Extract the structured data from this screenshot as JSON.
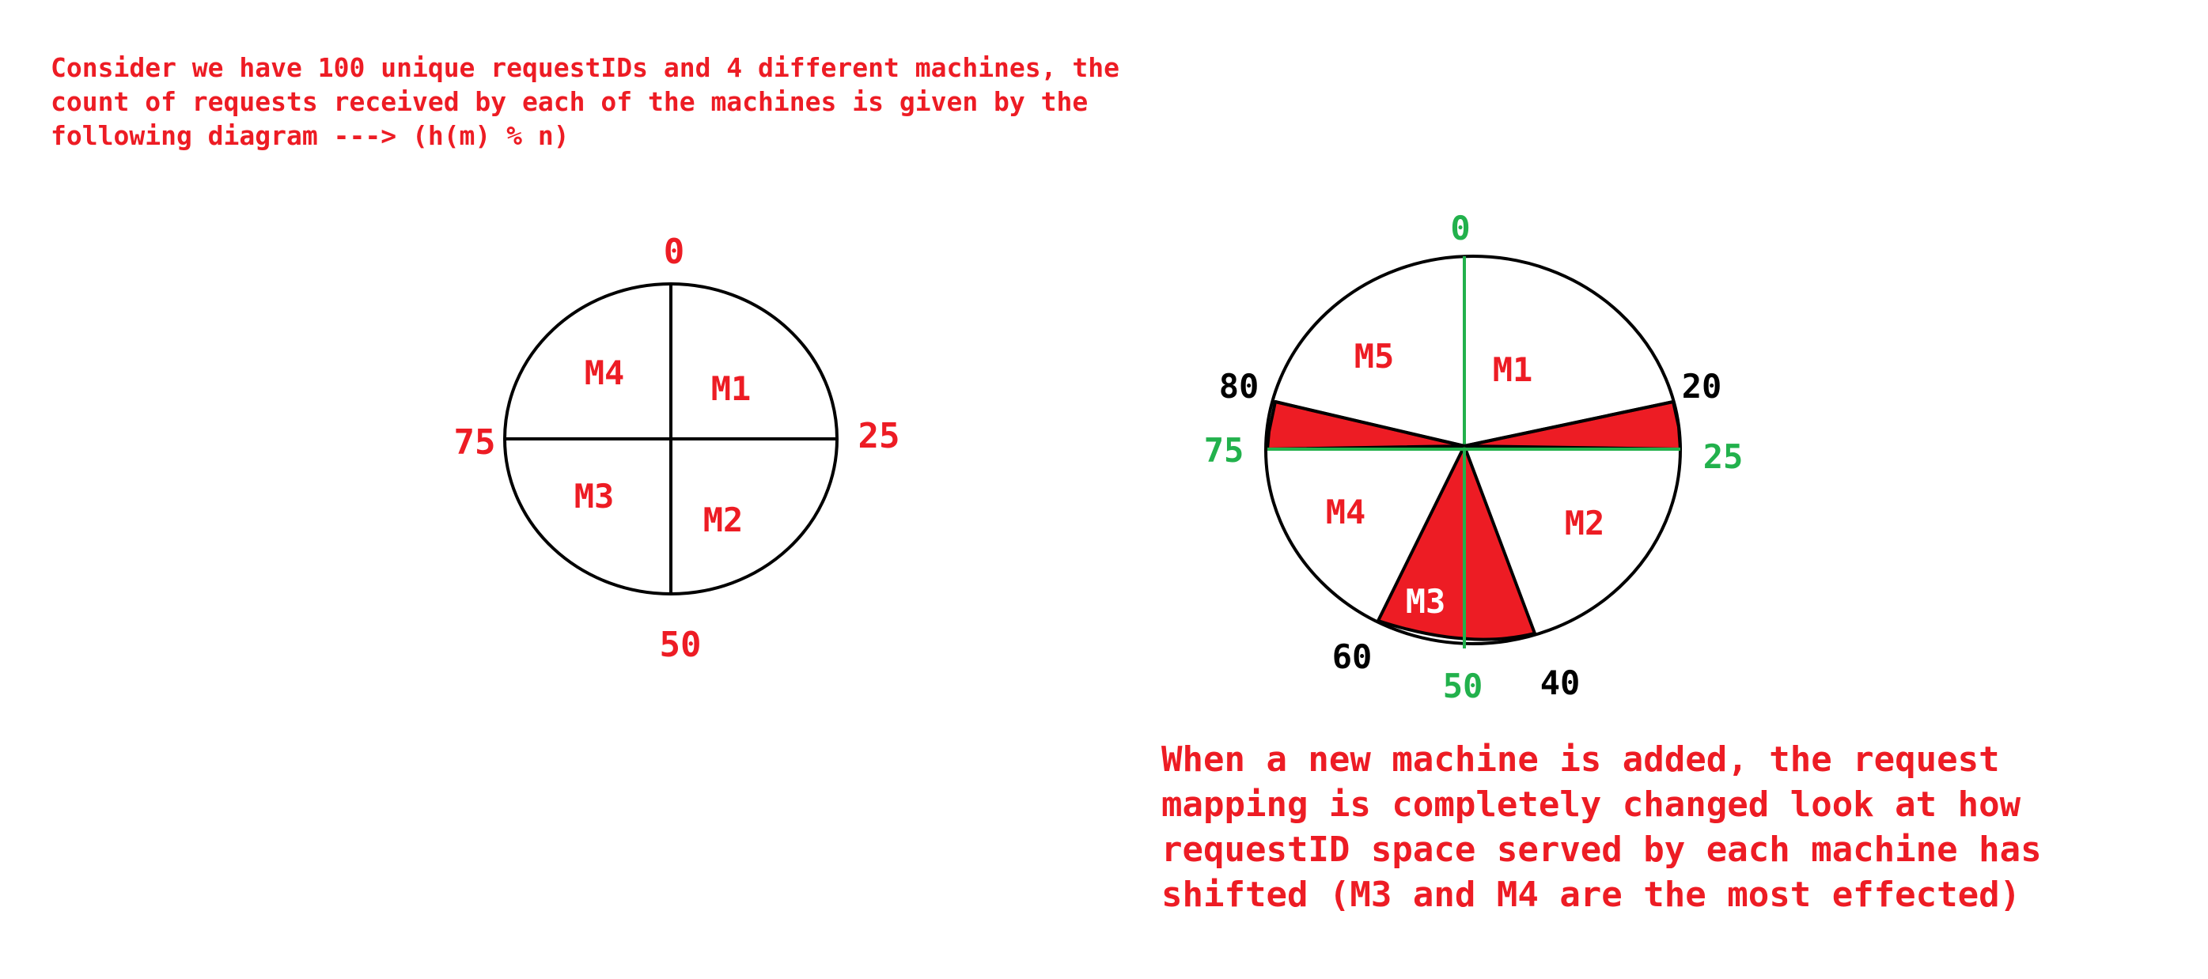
{
  "intro_note": "Consider we have 100 unique requestIDs and 4 different machines, the\ncount of requests received by each of the machines is given by the\nfollowing diagram ---> (h(m) % n)",
  "change_note": "When a new machine is added, the request\nmapping is completely changed look at how\nrequestID space served by each machine has\nshifted (M3 and M4 are the most effected)",
  "colors": {
    "accent_red": "#ed1c24",
    "green": "#22b14c",
    "ink": "#000000",
    "white_text": "#ffffff"
  },
  "ring_before": {
    "positions": {
      "top": "0",
      "right": "25",
      "bottom": "50",
      "left": "75"
    },
    "machines": {
      "q1": "M1",
      "q2": "M2",
      "q3": "M3",
      "q4": "M4"
    }
  },
  "ring_after": {
    "old_positions": {
      "top": "0",
      "right": "25",
      "bottom": "50",
      "left": "75"
    },
    "new_positions": {
      "p20": "20",
      "p40": "40",
      "p60": "60",
      "p80": "80"
    },
    "machines": {
      "m1": "M1",
      "m2": "M2",
      "m3": "M3",
      "m4": "M4",
      "m5": "M5"
    }
  }
}
